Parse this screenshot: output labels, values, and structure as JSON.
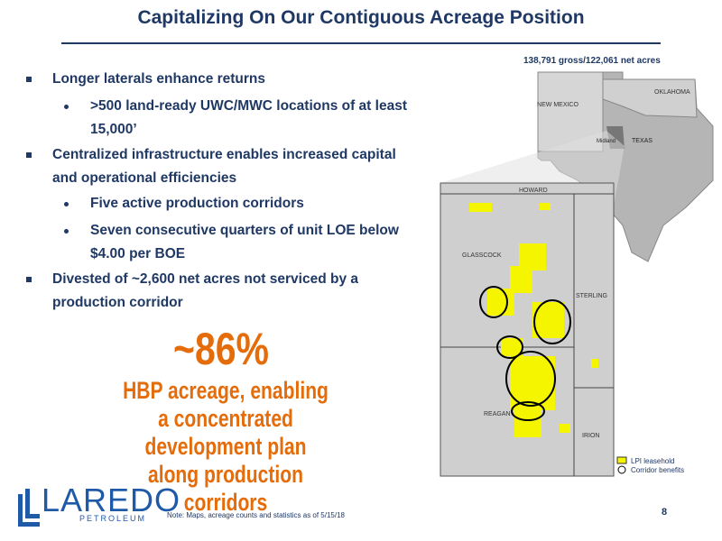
{
  "header": {
    "title": "Capitalizing On Our Contiguous Acreage Position"
  },
  "bullets": [
    {
      "text": "Longer laterals enhance returns",
      "sub": [
        ">500 land-ready UWC/MWC locations of at least 15,000’"
      ]
    },
    {
      "text": "Centralized infrastructure enables increased capital and operational efficiencies",
      "sub": [
        "Five active production corridors",
        "Seven consecutive quarters of unit LOE below $4.00 per BOE"
      ]
    },
    {
      "text": "Divested of ~2,600 net acres not serviced by a production corridor",
      "sub": []
    }
  ],
  "highlight": {
    "stat": "~86%",
    "text": "HBP acreage, enabling a concentrated development plan along production corridors"
  },
  "map": {
    "caption": "138,791 gross/122,061 net acres",
    "state_labels": {
      "new_mexico": "NEW MEXICO",
      "oklahoma": "OKLAHOMA",
      "texas": "TEXAS",
      "midland": "Midland"
    },
    "county_labels": {
      "howard": "HOWARD",
      "glasscock": "GLASSCOCK",
      "sterling": "STERLING",
      "reagan": "REAGAN",
      "irion": "IRION"
    },
    "legend": [
      "LPI leasehold",
      "Corridor benefits"
    ]
  },
  "footer": {
    "logo": "LAREDO",
    "logo_sub": "PETROLEUM",
    "note": "Note: Maps, acreage counts and statistics as of 5/15/18",
    "page": "8"
  }
}
